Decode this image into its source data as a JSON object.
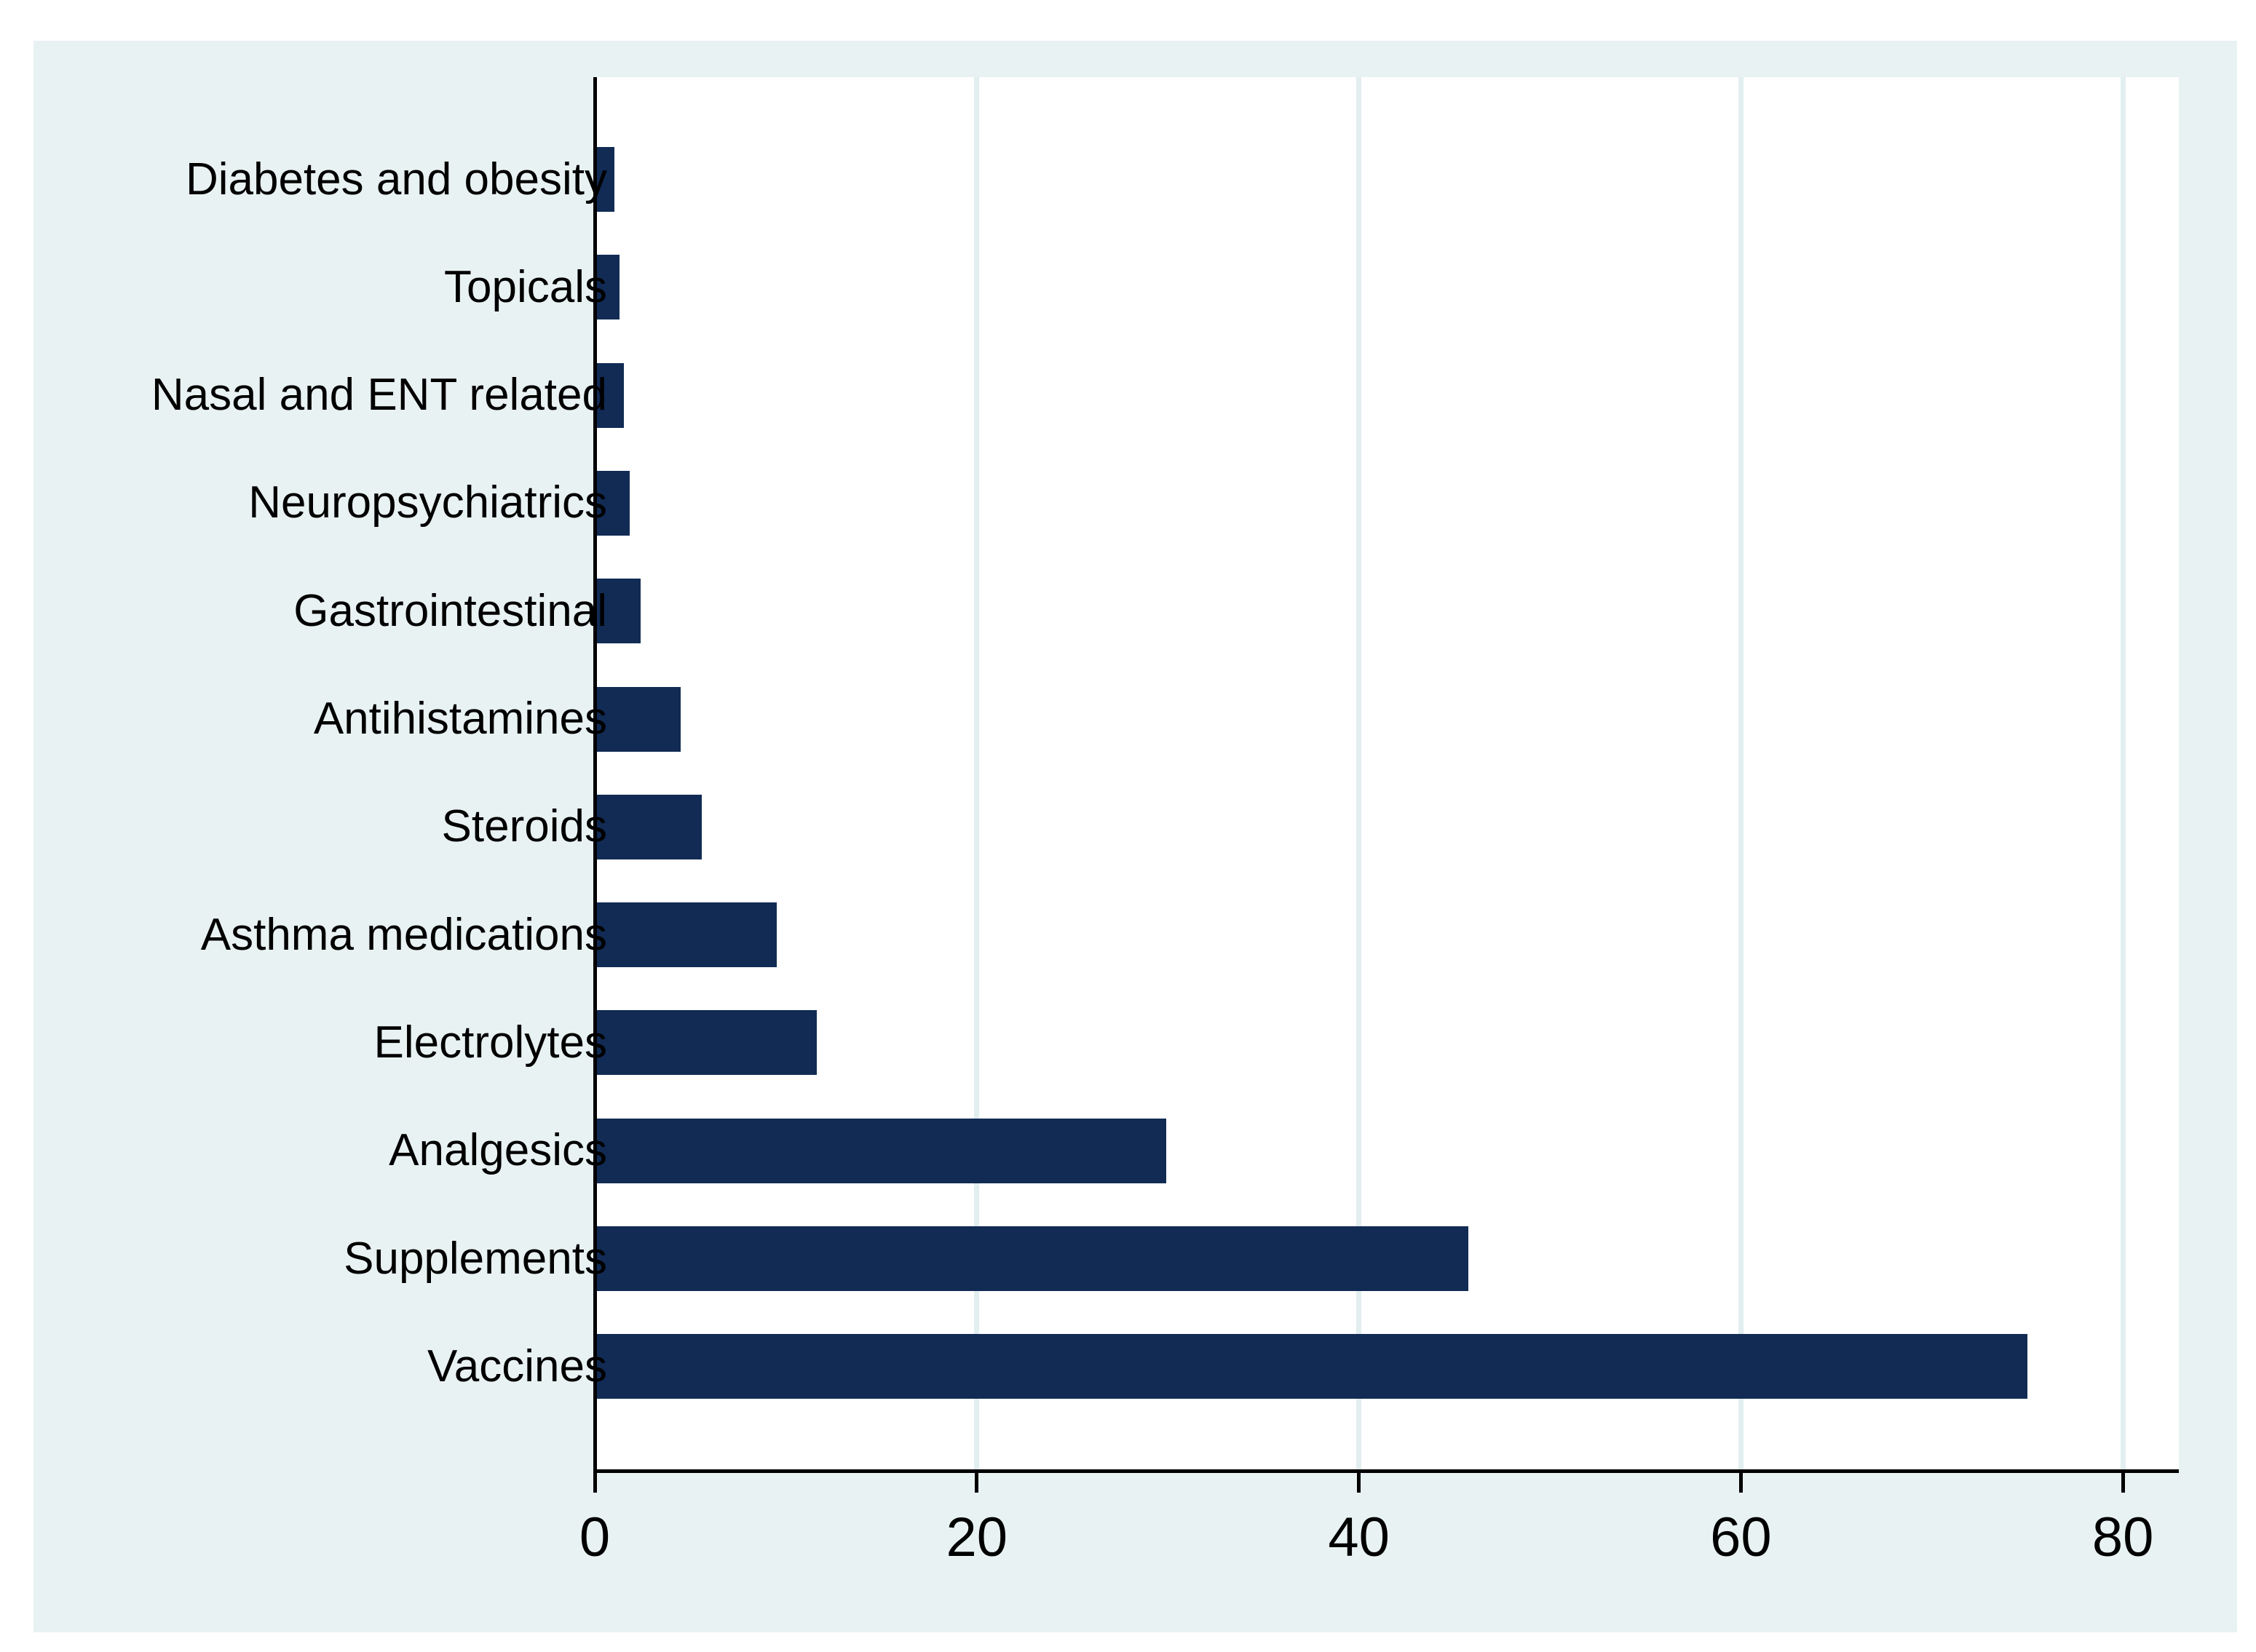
{
  "chart_data": {
    "type": "bar",
    "orientation": "horizontal",
    "title": "",
    "xlabel": "",
    "ylabel": "",
    "categories": [
      "Diabetes and obesity",
      "Topicals",
      "Nasal and ENT related",
      "Neuropsychiatrics",
      "Gastrointestinal",
      "Antihistamines",
      "Steroids",
      "Asthma medications",
      "Electrolytes",
      "Analgesics",
      "Supplements",
      "Vaccines"
    ],
    "values": [
      0.9,
      1.2,
      1.4,
      1.7,
      2.3,
      4.4,
      5.5,
      9.4,
      11.5,
      29.8,
      45.6,
      74.9
    ],
    "xticks": [
      0,
      20,
      40,
      60,
      80
    ],
    "xtick_labels": [
      "0",
      "20",
      "40",
      "60",
      "80"
    ],
    "xlim": [
      0,
      83
    ],
    "grid": "vertical gridlines at x ticks, on",
    "legend_position": "none",
    "colors": {
      "bar": "#112B54",
      "canvas": "#FFFFFF",
      "graph_background": "#E9F2F2",
      "plot_background": "#FFFFFF",
      "gridline": "#E2EEEF",
      "axis": "#000000",
      "text": "#000000"
    }
  }
}
